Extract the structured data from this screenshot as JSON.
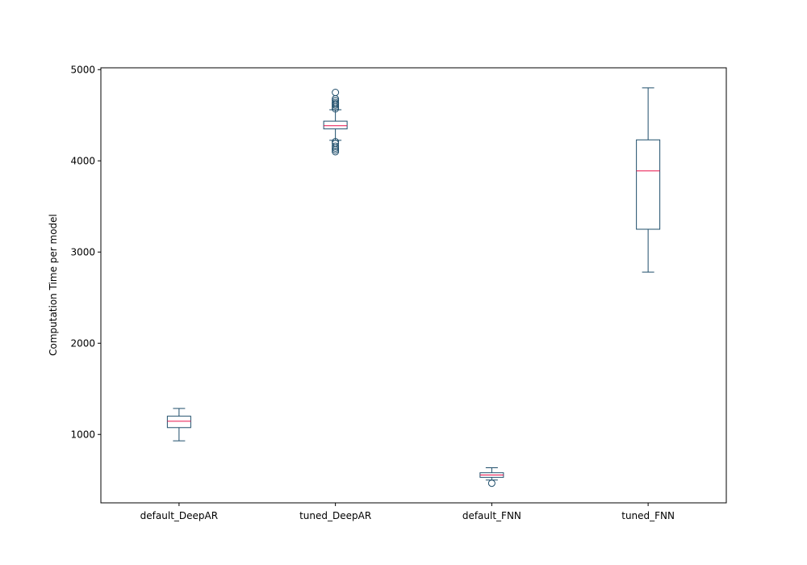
{
  "chart_data": {
    "type": "box",
    "title": "",
    "xlabel": "",
    "ylabel": "Computation Time per model",
    "ylim": [
      250,
      5020
    ],
    "yticks": [
      1000,
      2000,
      3000,
      4000,
      5000
    ],
    "grid": false,
    "legend": "none",
    "categories": [
      "default_DeepAR",
      "tuned_DeepAR",
      "default_FNN",
      "tuned_FNN"
    ],
    "boxes": [
      {
        "category": "default_DeepAR",
        "whisker_low": 930,
        "q1": 1075,
        "median": 1145,
        "q3": 1200,
        "whisker_high": 1285,
        "outliers": []
      },
      {
        "category": "tuned_DeepAR",
        "whisker_low": 4225,
        "q1": 4350,
        "median": 4385,
        "q3": 4435,
        "whisker_high": 4560,
        "outliers": [
          4100,
          4120,
          4140,
          4160,
          4190,
          4210,
          4570,
          4590,
          4610,
          4625,
          4640,
          4660,
          4680,
          4750
        ]
      },
      {
        "category": "default_FNN",
        "whisker_low": 500,
        "q1": 530,
        "median": 555,
        "q3": 580,
        "whisker_high": 635,
        "outliers": [
          465
        ]
      },
      {
        "category": "tuned_FNN",
        "whisker_low": 2780,
        "q1": 3250,
        "median": 3890,
        "q3": 4230,
        "whisker_high": 4800,
        "outliers": []
      }
    ],
    "colors": {
      "box": "#1f4e6b",
      "median": "#e8114a",
      "axis": "#000000"
    }
  }
}
